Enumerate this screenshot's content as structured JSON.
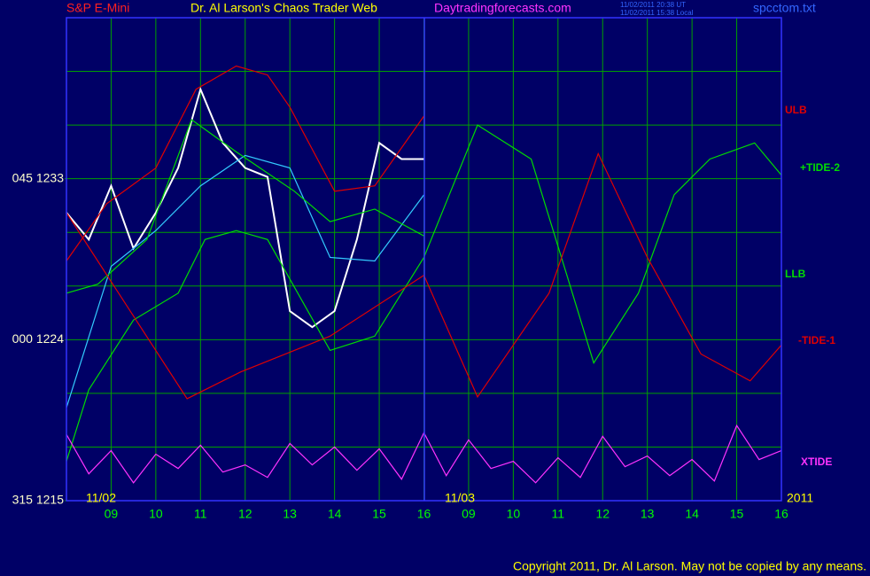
{
  "chart_data": {
    "type": "line",
    "title": "S&P E-Mini",
    "subtitle": "Dr. Al Larson's Chaos Trader Web",
    "site": "Daytradingforecasts.com",
    "timestamps": [
      "11/02/2011 20:38 UT",
      "11/02/2011 15:38 Local"
    ],
    "file": "spcctom.txt",
    "copyright": "Copyright 2011, Dr. Al Larson. May not be copied by any means.",
    "date_labels": [
      "11/02",
      "11/03",
      "2011"
    ],
    "xlim": [
      0,
      16
    ],
    "xticks": [
      {
        "value": 1,
        "label": "09"
      },
      {
        "value": 2,
        "label": "10"
      },
      {
        "value": 3,
        "label": "11"
      },
      {
        "value": 4,
        "label": "12"
      },
      {
        "value": 5,
        "label": "13"
      },
      {
        "value": 6,
        "label": "14"
      },
      {
        "value": 7,
        "label": "15"
      },
      {
        "value": 8,
        "label": "16"
      },
      {
        "value": 9,
        "label": "09"
      },
      {
        "value": 10,
        "label": "10"
      },
      {
        "value": 11,
        "label": "11"
      },
      {
        "value": 12,
        "label": "12"
      },
      {
        "value": 13,
        "label": "13"
      },
      {
        "value": 14,
        "label": "14"
      },
      {
        "value": 15,
        "label": "15"
      },
      {
        "value": 16,
        "label": "16"
      }
    ],
    "ylim": [
      1215,
      1242
    ],
    "yticks": [
      {
        "value": 1233,
        "label": "045 1233"
      },
      {
        "value": 1224,
        "label": "000 1224"
      },
      {
        "value": 1215,
        "label": "315 1215"
      }
    ],
    "ygrid": [
      1218,
      1221,
      1224,
      1227,
      1230,
      1233,
      1236,
      1239,
      1242
    ],
    "grid": true,
    "series": [
      {
        "color": "#ffffff",
        "x": [
          0,
          0.5,
          1,
          1.5,
          2,
          2.5,
          3,
          3.5,
          4,
          4.5,
          5,
          5.5,
          6,
          6.5,
          7,
          7.5,
          8
        ],
        "values": [
          1231.1,
          1229.6,
          1232.6,
          1229.1,
          1231.1,
          1233.6,
          1238.0,
          1235.0,
          1233.6,
          1233.1,
          1225.6,
          1224.7,
          1225.6,
          1229.6,
          1235.0,
          1234.1,
          1234.1
        ]
      },
      {
        "color": "#33ccff",
        "x": [
          0,
          1,
          2,
          3,
          4,
          5,
          5.9,
          6.9,
          8
        ],
        "values": [
          1220.2,
          1228.1,
          1230.1,
          1232.6,
          1234.3,
          1233.6,
          1228.6,
          1228.4,
          1232.1
        ]
      },
      {
        "name": "ULB",
        "color": "#e00000",
        "x": [
          0,
          0.9,
          2,
          2.9,
          3.8,
          4.5,
          5,
          6,
          6.9,
          8
        ],
        "values": [
          1228.4,
          1231.6,
          1233.6,
          1238.0,
          1239.3,
          1238.8,
          1237.0,
          1232.3,
          1232.6,
          1236.5
        ]
      },
      {
        "name": "+TIDE-2",
        "color": "#00dd00",
        "x": [
          0,
          0.5,
          1.5,
          2.5,
          3.1,
          3.8,
          4.5,
          5.9,
          6.9,
          8,
          9.2,
          10.4,
          11.2,
          11.8,
          12.8,
          13.6,
          14.4,
          15.4,
          16
        ],
        "values": [
          1217.2,
          1221.2,
          1225.1,
          1226.6,
          1229.6,
          1230.1,
          1229.6,
          1223.4,
          1224.2,
          1228.6,
          1236.0,
          1234.1,
          1227.6,
          1222.7,
          1226.6,
          1232.1,
          1234.1,
          1235.0,
          1233.2
        ]
      },
      {
        "name": "LLB",
        "color": "#00dd00",
        "x": [
          0,
          0.7,
          1.8,
          2.8,
          3.8,
          5.1,
          5.9,
          6.9,
          8
        ],
        "values": [
          1226.6,
          1227.1,
          1229.6,
          1236.3,
          1234.5,
          1232.3,
          1230.6,
          1231.3,
          1229.8
        ]
      },
      {
        "name": "-TIDE-1",
        "color": "#e00000",
        "x": [
          0,
          2.7,
          3.9,
          5.9,
          8,
          9.2,
          10.8,
          11.9,
          13,
          14.2,
          15.3,
          16
        ],
        "values": [
          1231.1,
          1220.7,
          1222.2,
          1224.2,
          1227.6,
          1220.8,
          1226.6,
          1234.4,
          1228.6,
          1223.2,
          1221.7,
          1223.7
        ]
      },
      {
        "name": "XTIDE",
        "color": "#ff33ff",
        "x": [
          0,
          0.5,
          1,
          1.5,
          2,
          2.5,
          3,
          3.5,
          4,
          4.5,
          5,
          5.5,
          6,
          6.5,
          7,
          7.5,
          8,
          8.5,
          9,
          9.5,
          10,
          10.5,
          11,
          11.5,
          12,
          12.5,
          13,
          13.5,
          14,
          14.5,
          15,
          15.5,
          16
        ],
        "values": [
          1218.7,
          1216.5,
          1217.8,
          1216.0,
          1217.6,
          1216.8,
          1218.1,
          1216.6,
          1217.0,
          1216.3,
          1218.2,
          1217.0,
          1218.0,
          1216.7,
          1217.9,
          1216.2,
          1218.8,
          1216.4,
          1218.4,
          1216.8,
          1217.2,
          1216.0,
          1217.4,
          1216.3,
          1218.6,
          1216.9,
          1217.5,
          1216.4,
          1217.3,
          1216.1,
          1219.2,
          1217.3,
          1217.8
        ]
      }
    ]
  }
}
